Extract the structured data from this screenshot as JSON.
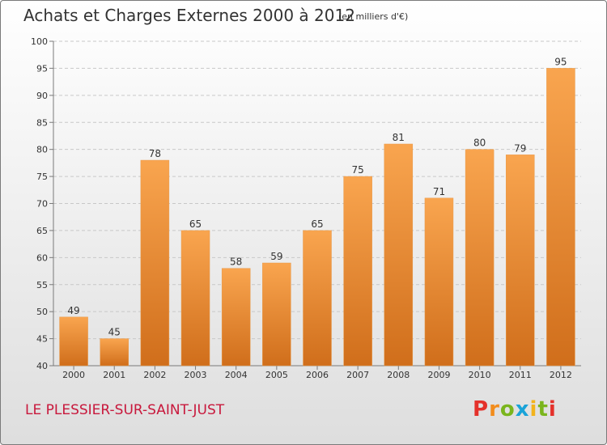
{
  "header": {
    "title": "Achats et Charges Externes 2000 à 2012",
    "subtitle": "(en milliers d'€)"
  },
  "footer": {
    "city": "LE PLESSIER-SUR-SAINT-JUST",
    "logo_letters": [
      "P",
      "r",
      "o",
      "x",
      "i",
      "t",
      "i"
    ],
    "logo_colors": [
      "#e4312b",
      "#f28c1c",
      "#7ab51d",
      "#1aa3d8",
      "#f2b31c",
      "#7ab51d",
      "#e4312b"
    ]
  },
  "colors": {
    "bar_top": "#f9a54f",
    "bar_bottom": "#d06e1b",
    "grid": "#c8c8c8",
    "axis": "#7a7a7a",
    "city": "#c8183c"
  },
  "chart_data": {
    "type": "bar",
    "categories": [
      "2000",
      "2001",
      "2002",
      "2003",
      "2004",
      "2005",
      "2006",
      "2007",
      "2008",
      "2009",
      "2010",
      "2011",
      "2012"
    ],
    "values": [
      49,
      45,
      78,
      65,
      58,
      59,
      65,
      75,
      81,
      71,
      80,
      79,
      95
    ],
    "ylim": [
      40,
      100
    ],
    "yticks": [
      40,
      45,
      50,
      55,
      60,
      65,
      70,
      75,
      80,
      85,
      90,
      95,
      100
    ],
    "grid": "horizontal dashed",
    "legend": "none"
  }
}
